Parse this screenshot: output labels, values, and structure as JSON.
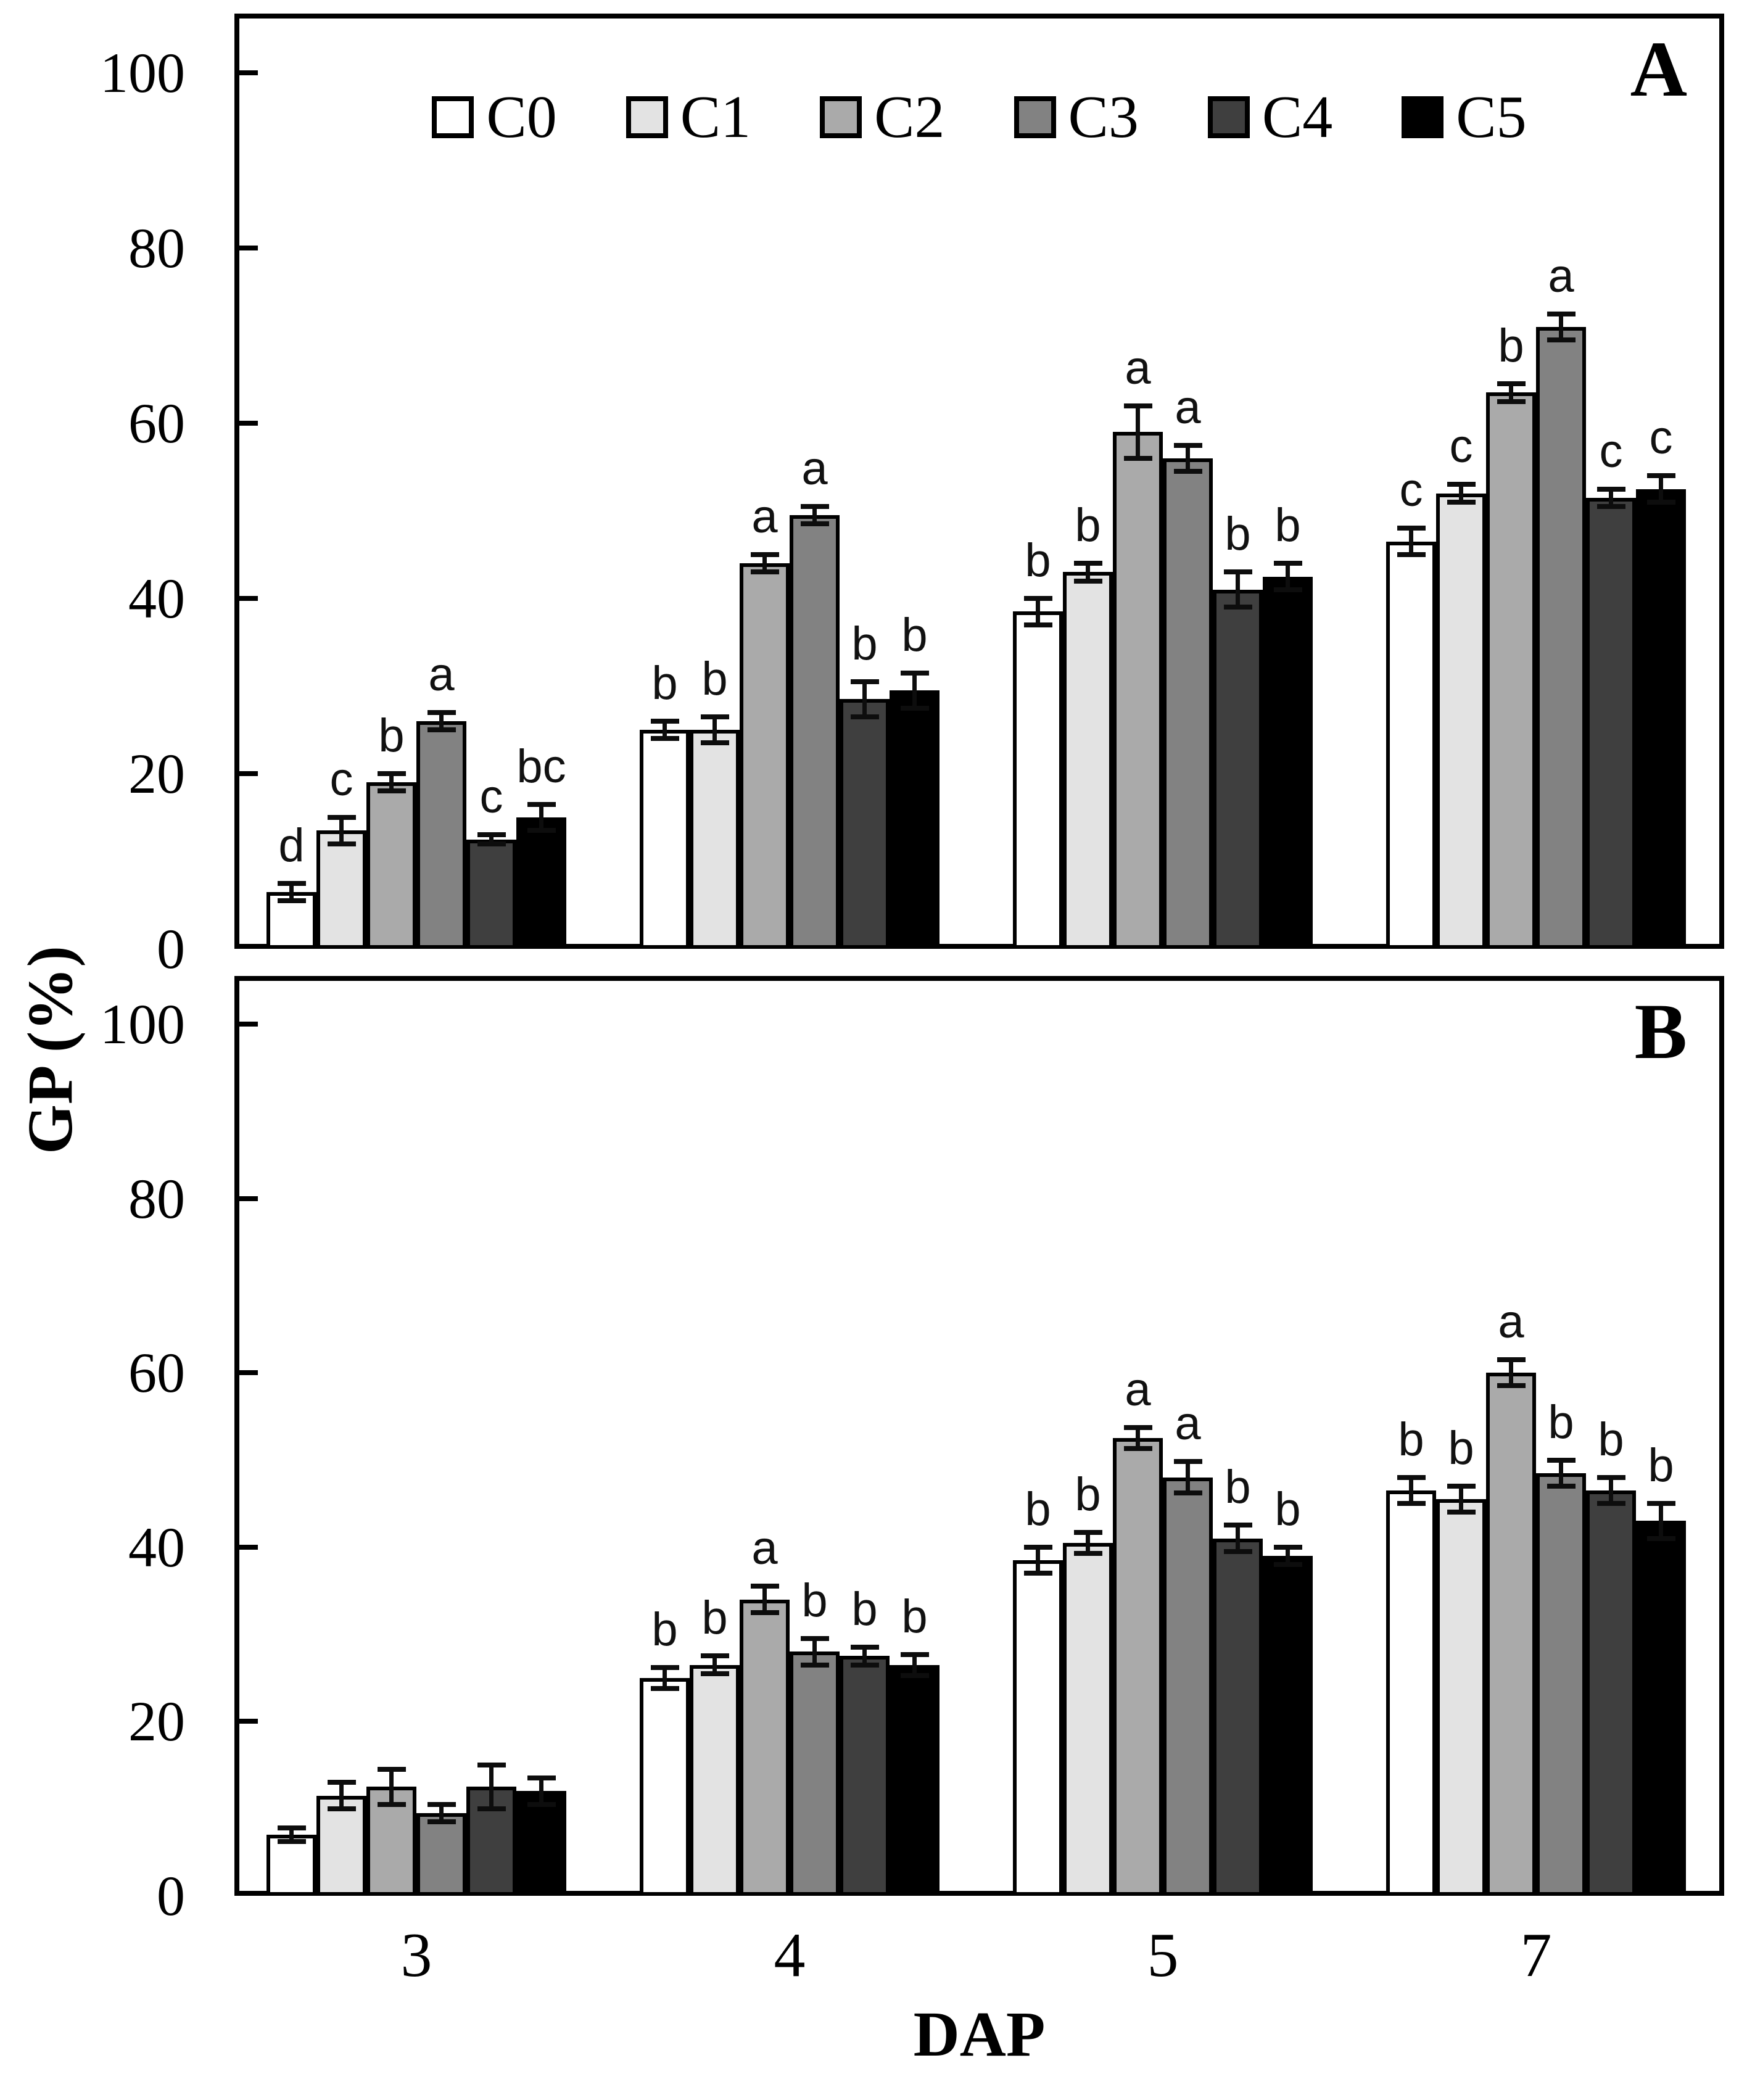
{
  "figure": {
    "y_axis_label": "GP (%)",
    "x_axis_label": "DAP",
    "legend": [
      "C0",
      "C1",
      "C2",
      "C3",
      "C4",
      "C5"
    ],
    "series_colors": {
      "C0": "#ffffff",
      "C1": "#e3e3e3",
      "C2": "#aaaaaa",
      "C3": "#828282",
      "C4": "#3f3f3f",
      "C5": "#000000"
    }
  },
  "chart_data": [
    {
      "type": "bar",
      "panel_label": "A",
      "categories": [
        "3",
        "4",
        "5",
        "7"
      ],
      "xlabel": "DAP",
      "ylabel": "GP (%)",
      "ylim": [
        0,
        100
      ],
      "yticks": [
        0,
        20,
        40,
        60,
        80,
        100
      ],
      "grid": false,
      "legend_position": "top-center",
      "error_bars": true,
      "series": [
        {
          "name": "C0",
          "color": "#ffffff",
          "values": [
            6.5,
            25,
            38.5,
            46.5
          ],
          "errors": [
            1,
            1,
            1.5,
            1.5
          ],
          "letters": [
            "d",
            "b",
            "b",
            "c"
          ]
        },
        {
          "name": "C1",
          "color": "#e3e3e3",
          "values": [
            13.5,
            25,
            43,
            52
          ],
          "errors": [
            1.5,
            1.5,
            1,
            1
          ],
          "letters": [
            "c",
            "b",
            "b",
            "c"
          ]
        },
        {
          "name": "C2",
          "color": "#aaaaaa",
          "values": [
            19,
            44,
            59,
            63.5
          ],
          "errors": [
            1,
            1,
            3,
            1
          ],
          "letters": [
            "b",
            "a",
            "a",
            "b"
          ]
        },
        {
          "name": "C3",
          "color": "#828282",
          "values": [
            26,
            49.5,
            56,
            71
          ],
          "errors": [
            1,
            1,
            1.5,
            1.5
          ],
          "letters": [
            "a",
            "a",
            "a",
            "a"
          ]
        },
        {
          "name": "C4",
          "color": "#3f3f3f",
          "values": [
            12.5,
            28.5,
            41,
            51.5
          ],
          "errors": [
            0.5,
            2,
            2,
            1
          ],
          "letters": [
            "c",
            "b",
            "b",
            "c"
          ]
        },
        {
          "name": "C5",
          "color": "#000000",
          "values": [
            15,
            29.5,
            42.5,
            52.5
          ],
          "errors": [
            1.5,
            2,
            1.5,
            1.5
          ],
          "letters": [
            "bc",
            "b",
            "b",
            "c"
          ]
        }
      ]
    },
    {
      "type": "bar",
      "panel_label": "B",
      "categories": [
        "3",
        "4",
        "5",
        "7"
      ],
      "xlabel": "DAP",
      "ylabel": "GP (%)",
      "ylim": [
        0,
        100
      ],
      "yticks": [
        0,
        20,
        40,
        60,
        80,
        100
      ],
      "grid": false,
      "legend_position": "none",
      "error_bars": true,
      "series": [
        {
          "name": "C0",
          "color": "#ffffff",
          "values": [
            7,
            25,
            38.5,
            46.5
          ],
          "errors": [
            0.8,
            1.2,
            1.5,
            1.5
          ],
          "letters": [
            "",
            "b",
            "b",
            "b"
          ]
        },
        {
          "name": "C1",
          "color": "#e3e3e3",
          "values": [
            11.5,
            26.5,
            40.5,
            45.5
          ],
          "errors": [
            1.5,
            1,
            1.2,
            1.5
          ],
          "letters": [
            "",
            "b",
            "b",
            "b"
          ]
        },
        {
          "name": "C2",
          "color": "#aaaaaa",
          "values": [
            12.5,
            34,
            52.5,
            60
          ],
          "errors": [
            2,
            1.5,
            1.2,
            1.5
          ],
          "letters": [
            "",
            "a",
            "a",
            "a"
          ]
        },
        {
          "name": "C3",
          "color": "#828282",
          "values": [
            9.5,
            28,
            48,
            48.5
          ],
          "errors": [
            1,
            1.5,
            1.8,
            1.5
          ],
          "letters": [
            "",
            "b",
            "a",
            "b"
          ]
        },
        {
          "name": "C4",
          "color": "#3f3f3f",
          "values": [
            12.5,
            27.5,
            41,
            46.5
          ],
          "errors": [
            2.5,
            1,
            1.5,
            1.5
          ],
          "letters": [
            "",
            "b",
            "b",
            "b"
          ]
        },
        {
          "name": "C5",
          "color": "#000000",
          "values": [
            12,
            26.5,
            39,
            43
          ],
          "errors": [
            1.5,
            1.2,
            1,
            2
          ],
          "letters": [
            "",
            "b",
            "b",
            "b"
          ]
        }
      ]
    }
  ]
}
